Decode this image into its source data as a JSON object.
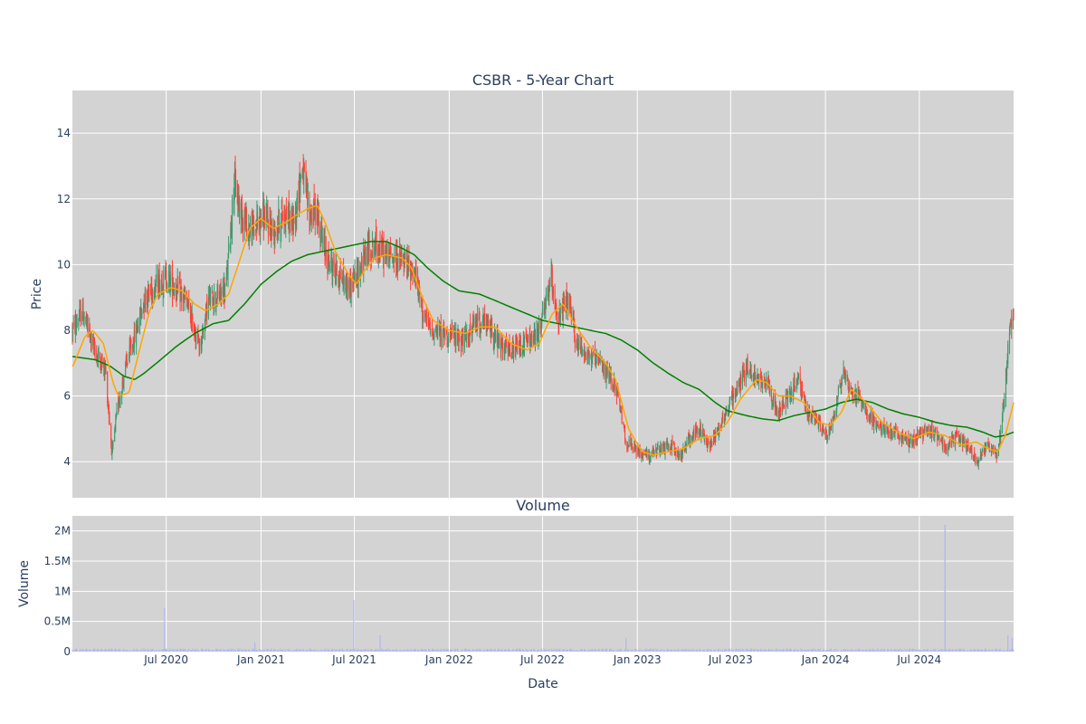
{
  "chart_data": [
    {
      "type": "candlestick",
      "title": "CSBR - 5-Year Chart",
      "ylabel": "Price",
      "ylim": [
        2.9,
        15.3
      ],
      "y_ticks": [
        4,
        6,
        8,
        10,
        12,
        14
      ],
      "grid": true,
      "colors": {
        "up": "#3d9970",
        "down": "#ff4136",
        "ma_short": "#ffa500",
        "ma_long": "#008000",
        "plot_bg": "#d3d3d3"
      },
      "price_keypoints": [
        [
          "2020-01-02",
          8.0
        ],
        [
          "2020-01-20",
          8.6
        ],
        [
          "2020-02-15",
          7.3
        ],
        [
          "2020-03-05",
          6.8
        ],
        [
          "2020-03-18",
          4.2
        ],
        [
          "2020-03-28",
          5.6
        ],
        [
          "2020-04-15",
          7.0
        ],
        [
          "2020-05-01",
          7.8
        ],
        [
          "2020-05-20",
          9.0
        ],
        [
          "2020-06-10",
          9.4
        ],
        [
          "2020-07-01",
          9.6
        ],
        [
          "2020-07-20",
          9.3
        ],
        [
          "2020-08-10",
          8.8
        ],
        [
          "2020-08-25",
          8.0
        ],
        [
          "2020-09-05",
          7.5
        ],
        [
          "2020-09-20",
          8.9
        ],
        [
          "2020-10-10",
          9.0
        ],
        [
          "2020-10-25",
          9.3
        ],
        [
          "2020-11-10",
          12.5
        ],
        [
          "2020-11-20",
          11.8
        ],
        [
          "2020-12-10",
          11.0
        ],
        [
          "2021-01-05",
          11.5
        ],
        [
          "2021-01-25",
          11.0
        ],
        [
          "2021-02-15",
          11.6
        ],
        [
          "2021-03-05",
          11.2
        ],
        [
          "2021-03-22",
          13.0
        ],
        [
          "2021-04-05",
          11.5
        ],
        [
          "2021-04-20",
          11.6
        ],
        [
          "2021-05-01",
          10.6
        ],
        [
          "2021-05-15",
          10.0
        ],
        [
          "2021-06-01",
          9.7
        ],
        [
          "2021-06-20",
          9.3
        ],
        [
          "2021-07-05",
          9.6
        ],
        [
          "2021-07-25",
          10.4
        ],
        [
          "2021-08-10",
          10.6
        ],
        [
          "2021-09-01",
          10.3
        ],
        [
          "2021-09-20",
          10.2
        ],
        [
          "2021-10-10",
          10.0
        ],
        [
          "2021-10-25",
          9.8
        ],
        [
          "2021-11-10",
          8.6
        ],
        [
          "2021-11-25",
          8.0
        ],
        [
          "2021-12-20",
          7.9
        ],
        [
          "2022-01-10",
          7.8
        ],
        [
          "2022-02-01",
          7.7
        ],
        [
          "2022-02-25",
          8.3
        ],
        [
          "2022-03-20",
          8.1
        ],
        [
          "2022-04-10",
          7.5
        ],
        [
          "2022-05-01",
          7.3
        ],
        [
          "2022-05-25",
          7.6
        ],
        [
          "2022-06-20",
          7.8
        ],
        [
          "2022-07-05",
          8.6
        ],
        [
          "2022-07-18",
          9.6
        ],
        [
          "2022-08-01",
          8.3
        ],
        [
          "2022-08-20",
          8.9
        ],
        [
          "2022-09-05",
          7.6
        ],
        [
          "2022-10-01",
          7.2
        ],
        [
          "2022-10-25",
          6.9
        ],
        [
          "2022-11-20",
          6.3
        ],
        [
          "2022-12-10",
          4.6
        ],
        [
          "2023-01-01",
          4.3
        ],
        [
          "2023-01-25",
          4.2
        ],
        [
          "2023-02-20",
          4.4
        ],
        [
          "2023-03-10",
          4.5
        ],
        [
          "2023-03-25",
          4.1
        ],
        [
          "2023-04-10",
          4.7
        ],
        [
          "2023-05-01",
          5.0
        ],
        [
          "2023-05-20",
          4.5
        ],
        [
          "2023-06-10",
          5.1
        ],
        [
          "2023-06-25",
          5.6
        ],
        [
          "2023-07-15",
          6.3
        ],
        [
          "2023-08-01",
          6.9
        ],
        [
          "2023-08-20",
          6.5
        ],
        [
          "2023-09-10",
          6.5
        ],
        [
          "2023-10-01",
          5.4
        ],
        [
          "2023-10-20",
          6.0
        ],
        [
          "2023-11-10",
          6.5
        ],
        [
          "2023-11-25",
          5.5
        ],
        [
          "2023-12-15",
          5.3
        ],
        [
          "2024-01-05",
          4.7
        ],
        [
          "2024-01-20",
          5.6
        ],
        [
          "2024-02-05",
          6.8
        ],
        [
          "2024-02-20",
          6.1
        ],
        [
          "2024-03-10",
          5.9
        ],
        [
          "2024-03-25",
          5.4
        ],
        [
          "2024-04-15",
          5.0
        ],
        [
          "2024-05-10",
          4.9
        ],
        [
          "2024-06-10",
          4.6
        ],
        [
          "2024-07-10",
          4.9
        ],
        [
          "2024-08-01",
          4.9
        ],
        [
          "2024-08-25",
          4.4
        ],
        [
          "2024-09-10",
          4.8
        ],
        [
          "2024-10-01",
          4.5
        ],
        [
          "2024-10-20",
          4.0
        ],
        [
          "2024-11-10",
          4.5
        ],
        [
          "2024-11-30",
          4.2
        ],
        [
          "2024-12-12",
          5.8
        ],
        [
          "2024-12-20",
          7.5
        ],
        [
          "2024-12-31",
          8.6
        ]
      ],
      "ma_short_keypoints": [
        [
          "2020-01-02",
          6.9
        ],
        [
          "2020-01-25",
          7.8
        ],
        [
          "2020-02-10",
          8.0
        ],
        [
          "2020-03-01",
          7.6
        ],
        [
          "2020-03-20",
          6.4
        ],
        [
          "2020-03-30",
          6.0
        ],
        [
          "2020-04-20",
          6.1
        ],
        [
          "2020-05-10",
          7.4
        ],
        [
          "2020-05-30",
          8.6
        ],
        [
          "2020-06-15",
          9.1
        ],
        [
          "2020-07-10",
          9.3
        ],
        [
          "2020-08-01",
          9.2
        ],
        [
          "2020-08-25",
          8.8
        ],
        [
          "2020-09-15",
          8.6
        ],
        [
          "2020-10-10",
          8.8
        ],
        [
          "2020-10-30",
          9.1
        ],
        [
          "2020-11-20",
          10.1
        ],
        [
          "2020-12-10",
          11.1
        ],
        [
          "2021-01-01",
          11.4
        ],
        [
          "2021-01-25",
          11.1
        ],
        [
          "2021-02-20",
          11.3
        ],
        [
          "2021-03-10",
          11.5
        ],
        [
          "2021-04-01",
          11.7
        ],
        [
          "2021-04-20",
          11.8
        ],
        [
          "2021-05-05",
          11.3
        ],
        [
          "2021-05-25",
          10.4
        ],
        [
          "2021-06-20",
          9.7
        ],
        [
          "2021-07-05",
          9.4
        ],
        [
          "2021-07-20",
          9.8
        ],
        [
          "2021-08-10",
          10.2
        ],
        [
          "2021-09-01",
          10.3
        ],
        [
          "2021-10-01",
          10.2
        ],
        [
          "2021-10-20",
          9.9
        ],
        [
          "2021-11-10",
          9.0
        ],
        [
          "2021-12-01",
          8.3
        ],
        [
          "2022-01-01",
          8.0
        ],
        [
          "2022-02-01",
          7.9
        ],
        [
          "2022-03-01",
          8.1
        ],
        [
          "2022-04-01",
          8.1
        ],
        [
          "2022-05-01",
          7.6
        ],
        [
          "2022-06-01",
          7.4
        ],
        [
          "2022-06-25",
          7.6
        ],
        [
          "2022-07-20",
          8.5
        ],
        [
          "2022-08-10",
          8.8
        ],
        [
          "2022-09-01",
          8.2
        ],
        [
          "2022-10-01",
          7.5
        ],
        [
          "2022-11-01",
          7.0
        ],
        [
          "2022-11-20",
          6.5
        ],
        [
          "2022-12-15",
          5.0
        ],
        [
          "2023-01-10",
          4.3
        ],
        [
          "2023-02-01",
          4.2
        ],
        [
          "2023-03-01",
          4.3
        ],
        [
          "2023-04-01",
          4.4
        ],
        [
          "2023-05-01",
          4.7
        ],
        [
          "2023-06-01",
          4.8
        ],
        [
          "2023-06-25",
          5.2
        ],
        [
          "2023-07-20",
          5.9
        ],
        [
          "2023-08-20",
          6.5
        ],
        [
          "2023-09-10",
          6.4
        ],
        [
          "2023-10-01",
          6.0
        ],
        [
          "2023-10-25",
          6.0
        ],
        [
          "2023-11-20",
          5.8
        ],
        [
          "2023-12-20",
          5.2
        ],
        [
          "2024-01-10",
          5.1
        ],
        [
          "2024-02-01",
          5.5
        ],
        [
          "2024-02-20",
          6.2
        ],
        [
          "2024-03-20",
          5.8
        ],
        [
          "2024-04-20",
          5.2
        ],
        [
          "2024-05-20",
          4.9
        ],
        [
          "2024-06-20",
          4.7
        ],
        [
          "2024-07-20",
          4.9
        ],
        [
          "2024-08-20",
          4.8
        ],
        [
          "2024-09-20",
          4.5
        ],
        [
          "2024-10-20",
          4.6
        ],
        [
          "2024-11-10",
          4.4
        ],
        [
          "2024-11-30",
          4.3
        ],
        [
          "2024-12-15",
          4.8
        ],
        [
          "2024-12-31",
          5.8
        ]
      ],
      "ma_long_keypoints": [
        [
          "2020-01-02",
          7.2
        ],
        [
          "2020-02-15",
          7.1
        ],
        [
          "2020-03-15",
          6.9
        ],
        [
          "2020-04-10",
          6.6
        ],
        [
          "2020-05-01",
          6.5
        ],
        [
          "2020-05-20",
          6.7
        ],
        [
          "2020-06-20",
          7.1
        ],
        [
          "2020-07-20",
          7.5
        ],
        [
          "2020-08-25",
          7.9
        ],
        [
          "2020-09-30",
          8.2
        ],
        [
          "2020-10-30",
          8.3
        ],
        [
          "2020-11-30",
          8.8
        ],
        [
          "2021-01-01",
          9.4
        ],
        [
          "2021-02-01",
          9.8
        ],
        [
          "2021-03-01",
          10.1
        ],
        [
          "2021-04-01",
          10.3
        ],
        [
          "2021-05-01",
          10.4
        ],
        [
          "2021-06-01",
          10.5
        ],
        [
          "2021-07-01",
          10.6
        ],
        [
          "2021-08-01",
          10.7
        ],
        [
          "2021-09-01",
          10.7
        ],
        [
          "2021-10-01",
          10.5
        ],
        [
          "2021-10-25",
          10.3
        ],
        [
          "2021-11-20",
          9.9
        ],
        [
          "2021-12-20",
          9.5
        ],
        [
          "2022-01-20",
          9.2
        ],
        [
          "2022-03-01",
          9.1
        ],
        [
          "2022-04-01",
          8.9
        ],
        [
          "2022-05-01",
          8.7
        ],
        [
          "2022-06-01",
          8.5
        ],
        [
          "2022-07-01",
          8.3
        ],
        [
          "2022-08-01",
          8.2
        ],
        [
          "2022-09-01",
          8.1
        ],
        [
          "2022-10-01",
          8.0
        ],
        [
          "2022-11-01",
          7.9
        ],
        [
          "2022-12-01",
          7.7
        ],
        [
          "2023-01-01",
          7.4
        ],
        [
          "2023-02-01",
          7.0
        ],
        [
          "2023-03-01",
          6.7
        ],
        [
          "2023-04-01",
          6.4
        ],
        [
          "2023-05-01",
          6.2
        ],
        [
          "2023-06-01",
          5.8
        ],
        [
          "2023-06-25",
          5.55
        ],
        [
          "2023-08-01",
          5.4
        ],
        [
          "2023-09-01",
          5.3
        ],
        [
          "2023-10-01",
          5.25
        ],
        [
          "2023-11-01",
          5.4
        ],
        [
          "2023-12-01",
          5.5
        ],
        [
          "2024-01-01",
          5.6
        ],
        [
          "2024-02-01",
          5.8
        ],
        [
          "2024-03-01",
          5.9
        ],
        [
          "2024-04-01",
          5.8
        ],
        [
          "2024-05-01",
          5.6
        ],
        [
          "2024-06-01",
          5.45
        ],
        [
          "2024-07-01",
          5.35
        ],
        [
          "2024-08-01",
          5.2
        ],
        [
          "2024-09-01",
          5.1
        ],
        [
          "2024-10-01",
          5.05
        ],
        [
          "2024-11-01",
          4.9
        ],
        [
          "2024-11-25",
          4.75
        ],
        [
          "2024-12-15",
          4.8
        ],
        [
          "2024-12-31",
          4.9
        ]
      ]
    },
    {
      "type": "bar",
      "title": "Volume",
      "xlabel": "Date",
      "ylabel": "Volume",
      "ylim": [
        0,
        2250000
      ],
      "y_ticks": [
        {
          "value": 0,
          "label": "0"
        },
        {
          "value": 500000,
          "label": "0.5M"
        },
        {
          "value": 1000000,
          "label": "1M"
        },
        {
          "value": 1500000,
          "label": "1.5M"
        },
        {
          "value": 2000000,
          "label": "2M"
        }
      ],
      "color": "#b0b8f0",
      "baseline_volume": 30000,
      "spikes": [
        [
          "2020-06-28",
          720000
        ],
        [
          "2020-12-20",
          150000
        ],
        [
          "2021-06-30",
          850000
        ],
        [
          "2021-08-20",
          270000
        ],
        [
          "2022-12-10",
          230000
        ],
        [
          "2024-08-20",
          2100000
        ],
        [
          "2024-12-20",
          270000
        ],
        [
          "2024-12-28",
          220000
        ]
      ]
    }
  ],
  "x_axis": {
    "range": [
      "2020-01-01",
      "2024-12-31"
    ],
    "ticks": [
      {
        "date": "2020-07-01",
        "label": "Jul 2020"
      },
      {
        "date": "2021-01-01",
        "label": "Jan 2021"
      },
      {
        "date": "2021-07-01",
        "label": "Jul 2021"
      },
      {
        "date": "2022-01-01",
        "label": "Jan 2022"
      },
      {
        "date": "2022-07-01",
        "label": "Jul 2022"
      },
      {
        "date": "2023-01-01",
        "label": "Jan 2023"
      },
      {
        "date": "2023-07-01",
        "label": "Jul 2023"
      },
      {
        "date": "2024-01-01",
        "label": "Jan 2024"
      },
      {
        "date": "2024-07-01",
        "label": "Jul 2024"
      }
    ]
  }
}
